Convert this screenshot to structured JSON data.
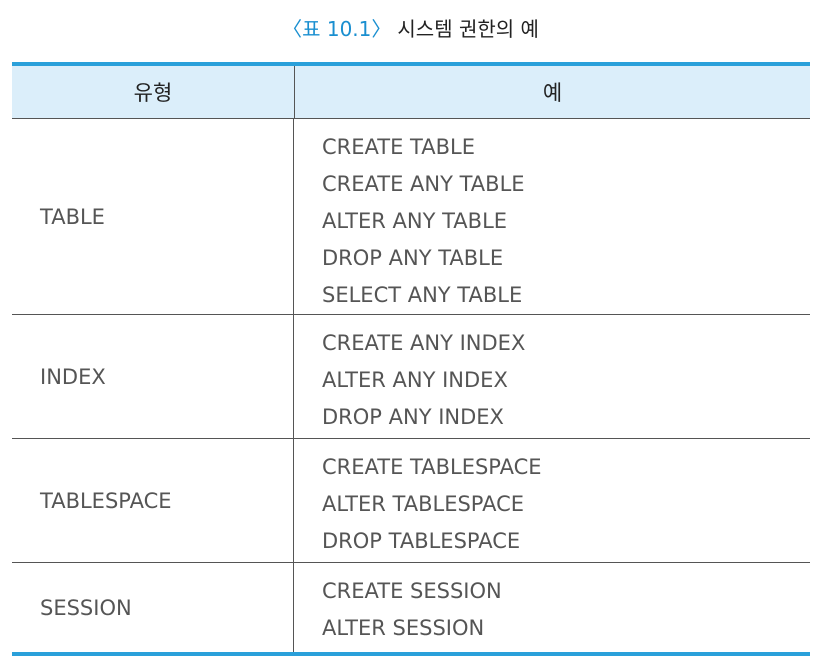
{
  "caption": {
    "open": "〈",
    "label": "표",
    "number": "10.1",
    "close": "〉",
    "title": "시스템 권한의 예"
  },
  "table": {
    "headers": [
      "유형",
      "예"
    ],
    "rows": [
      {
        "type": "TABLE",
        "examples": [
          "CREATE TABLE",
          "CREATE ANY TABLE",
          "ALTER ANY TABLE",
          "DROP ANY TABLE",
          "SELECT ANY TABLE"
        ]
      },
      {
        "type": "INDEX",
        "examples": [
          "CREATE ANY INDEX",
          "ALTER ANY INDEX",
          "DROP ANY INDEX"
        ]
      },
      {
        "type": "TABLESPACE",
        "examples": [
          "CREATE TABLESPACE",
          "ALTER TABLESPACE",
          "DROP TABLESPACE"
        ]
      },
      {
        "type": "SESSION",
        "examples": [
          "CREATE SESSION",
          "ALTER SESSION"
        ]
      }
    ]
  },
  "colors": {
    "accent": "#2aa0da",
    "header_bg": "#dbeefa"
  }
}
